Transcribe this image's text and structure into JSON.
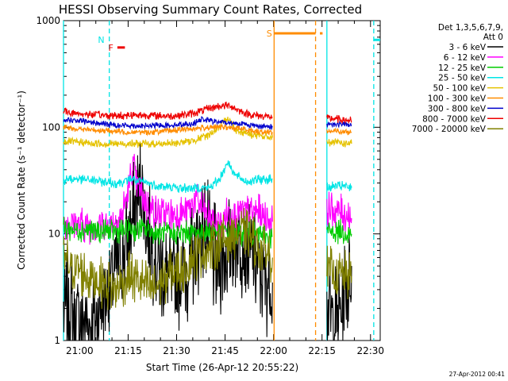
{
  "chart_data": {
    "type": "line",
    "title": "HESSI Observing Summary Count Rates, Corrected",
    "xlabel": "Start Time (26-Apr-12 20:55:22)",
    "ylabel": "Corrected Count Rate (s⁻¹ detector⁻¹)",
    "footer": "27-Apr-2012 00:41",
    "y_scale": "log",
    "ylim": [
      1,
      1000
    ],
    "xlim": [
      "20:55",
      "22:33"
    ],
    "x_ticks": [
      "21:00",
      "21:15",
      "21:30",
      "21:45",
      "22:00",
      "22:15",
      "22:30"
    ],
    "x_tick_values": [
      300,
      1200,
      2100,
      3000,
      3900,
      4800,
      5700
    ],
    "y_ticks": [
      "1",
      "10",
      "100",
      "1000"
    ],
    "y_tick_values": [
      1,
      10,
      100,
      1000
    ],
    "legend_position": "right",
    "legend_header": [
      "Det 1,3,5,6,7,9,",
      "Att 0"
    ],
    "series": [
      {
        "name": "3 - 6 keV",
        "color": "#000000",
        "segments": [
          {
            "x": [
              0,
              120,
              240,
              360,
              480,
              600,
              720,
              840,
              960,
              1080,
              1200,
              1320,
              1440,
              1560,
              1680,
              1800,
              1920,
              2040,
              2160,
              2280,
              2400,
              2520,
              2640,
              2760,
              2880,
              3000,
              3120,
              3240,
              3360,
              3480,
              3600,
              3720,
              3880
            ],
            "y": [
              2.0,
              1.8,
              1.5,
              1.6,
              1.4,
              1.6,
              2.5,
              3.2,
              4.5,
              6,
              9,
              15,
              28,
              10,
              6,
              5,
              4,
              3.5,
              4,
              5,
              6,
              9,
              12,
              6,
              5,
              7,
              9,
              10,
              8,
              6,
              5,
              4,
              3.5
            ]
          },
          {
            "x": [
              4890,
              5010,
              5130,
              5250,
              5350
            ],
            "y": [
              2.0,
              1.5,
              1.8,
              3,
              5
            ]
          }
        ]
      },
      {
        "name": "6 - 12 keV",
        "color": "#ff00ff",
        "segments": [
          {
            "x": [
              0,
              240,
              480,
              720,
              960,
              1080,
              1200,
              1290,
              1380,
              1560,
              1800,
              2100,
              2280,
              2460,
              2640,
              2800,
              2940,
              3060,
              3240,
              3360,
              3480,
              3600,
              3720,
              3880
            ],
            "y": [
              13,
              12.5,
              12,
              12,
              13,
              15,
              25,
              45,
              28,
              18,
              15,
              15,
              16,
              22,
              15,
              13,
              12.5,
              16,
              16,
              16,
              16,
              16,
              15,
              13
            ]
          },
          {
            "x": [
              4890,
              5010,
              5130,
              5250,
              5350
            ],
            "y": [
              17,
              17,
              16,
              15,
              14
            ]
          }
        ]
      },
      {
        "name": "12 - 25 keV",
        "color": "#00cc00",
        "segments": [
          {
            "x": [
              0,
              240,
              480,
              720,
              960,
              1200,
              1500,
              1800,
              2100,
              2400,
              2700,
              3000,
              3300,
              3600,
              3880
            ],
            "y": [
              11,
              11,
              11,
              10.5,
              10.5,
              11,
              11,
              10,
              10,
              10.5,
              10.5,
              10.5,
              10,
              9.8,
              9.5
            ]
          },
          {
            "x": [
              4890,
              5040,
              5190,
              5350
            ],
            "y": [
              10.5,
              10.5,
              10.5,
              10
            ]
          }
        ]
      },
      {
        "name": "25 - 50 keV",
        "color": "#00e5e5",
        "segments": [
          {
            "x": [
              0,
              240,
              480,
              720,
              960,
              1140,
              1260,
              1380,
              1560,
              1800,
              2100,
              2400,
              2700,
              2900,
              3050,
              3200,
              3400,
              3600,
              3880
            ],
            "y": [
              32,
              33,
              32,
              31,
              30,
              31,
              33,
              31,
              30,
              28,
              27,
              27,
              27,
              33,
              48,
              35,
              31,
              32,
              33
            ]
          },
          {
            "x": [
              4890,
              5040,
              5190,
              5350
            ],
            "y": [
              27,
              28,
              28,
              27
            ]
          }
        ]
      },
      {
        "name": "50 - 100 keV",
        "color": "#e5c200",
        "segments": [
          {
            "x": [
              0,
              300,
              600,
              900,
              1200,
              1500,
              1800,
              2100,
              2400,
              2700,
              2900,
              3050,
              3200,
              3500,
              3880
            ],
            "y": [
              74,
              72,
              70,
              70,
              70,
              70,
              70,
              71,
              75,
              85,
              100,
              125,
              95,
              85,
              80
            ]
          },
          {
            "x": [
              4890,
              5040,
              5190,
              5350
            ],
            "y": [
              72,
              72,
              71,
              70
            ]
          }
        ]
      },
      {
        "name": "100 - 300 keV",
        "color": "#ff8c00",
        "segments": [
          {
            "x": [
              0,
              300,
              600,
              900,
              1200,
              1500,
              1800,
              2100,
              2400,
              2700,
              3000,
              3300,
              3600,
              3880
            ],
            "y": [
              100,
              96,
              94,
              92,
              90,
              90,
              91,
              94,
              97,
              100,
              100,
              97,
              92,
              90
            ]
          },
          {
            "x": [
              4890,
              5040,
              5190,
              5350
            ],
            "y": [
              92,
              92,
              91,
              90
            ]
          }
        ]
      },
      {
        "name": "300 - 800 keV",
        "color": "#0000cc",
        "segments": [
          {
            "x": [
              0,
              240,
              480,
              720,
              960,
              1200,
              1500,
              1800,
              2100,
              2400,
              2580,
              2700,
              2900,
              3100,
              3300,
              3500,
              3700,
              3880
            ],
            "y": [
              120,
              115,
              112,
              108,
              105,
              104,
              103,
              104,
              106,
              108,
              120,
              115,
              112,
              110,
              108,
              105,
              102,
              100
            ]
          },
          {
            "x": [
              4890,
              5040,
              5190,
              5350
            ],
            "y": [
              108,
              107,
              106,
              105
            ]
          }
        ]
      },
      {
        "name": "800 - 7000 keV",
        "color": "#ee0000",
        "segments": [
          {
            "x": [
              0,
              240,
              480,
              720,
              960,
              1200,
              1500,
              1800,
              2100,
              2400,
              2700,
              2900,
              3100,
              3300,
              3500,
              3700,
              3880
            ],
            "y": [
              140,
              135,
              132,
              130,
              128,
              130,
              130,
              128,
              128,
              135,
              150,
              158,
              160,
              140,
              130,
              128,
              125
            ]
          },
          {
            "x": [
              4890,
              5040,
              5190,
              5350
            ],
            "y": [
              120,
              120,
              118,
              115
            ]
          }
        ]
      },
      {
        "name": "7000 - 20000 keV",
        "color": "#808000",
        "segments": [
          {
            "x": [
              0,
              120,
              300,
              480,
              720,
              960,
              1200,
              1440,
              1680,
              1920,
              2160,
              2400,
              2640,
              2880,
              3120,
              3360,
              3600,
              3880
            ],
            "y": [
              6,
              5,
              4.5,
              4,
              3.5,
              3,
              4,
              3.5,
              3,
              4,
              4.5,
              6,
              7,
              8,
              10,
              10,
              8,
              6
            ]
          },
          {
            "x": [
              4890,
              5040,
              5190,
              5350
            ],
            "y": [
              4.5,
              4.2,
              4,
              4
            ]
          }
        ]
      }
    ],
    "vertical_lines": [
      {
        "x": 0,
        "color": "#00e5e5",
        "style": "solid"
      },
      {
        "x": 850,
        "color": "#00e5e5",
        "style": "dashed"
      },
      {
        "x": 3910,
        "color": "#ff8c00",
        "style": "solid"
      },
      {
        "x": 4680,
        "color": "#ff8c00",
        "style": "dashed"
      },
      {
        "x": 4890,
        "color": "#00e5e5",
        "style": "solid"
      },
      {
        "x": 5760,
        "color": "#00e5e5",
        "style": "dashed"
      }
    ],
    "flag_bars": [
      {
        "label": "N",
        "color": "#00e5e5",
        "y": 660,
        "ranges": [
          [
            -360,
            0
          ],
          [
            5760,
            5920
          ]
        ],
        "label_x": 700
      },
      {
        "label": "F",
        "color": "#ee0000",
        "y": 560,
        "ranges": [
          [
            1000,
            1140
          ]
        ],
        "label_x": 880
      },
      {
        "label": "S",
        "color": "#ff8c00",
        "y": 760,
        "ranges": [
          [
            3910,
            4680
          ],
          [
            4760,
            4810
          ]
        ],
        "label_x": 3820
      }
    ]
  }
}
